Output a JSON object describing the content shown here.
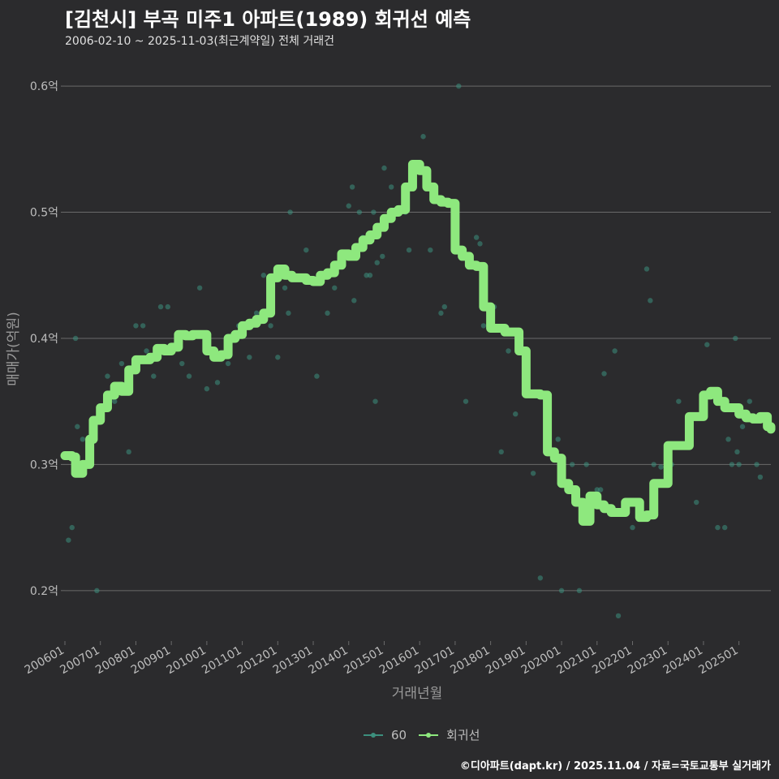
{
  "header": {
    "title": "[김천시] 부곡 미주1 아파트(1989) 회귀선 예측",
    "subtitle": "2006-02-10 ~ 2025-11-03(최근계약일) 전체 거래건"
  },
  "footer": {
    "credit": "©디아파트(dapt.kr) / 2025.11.04 / 자료=국토교통부 실거래가"
  },
  "colors": {
    "scatter": "#3c8f7d",
    "regression": "#8ee87e",
    "grid": "#6a6a6a",
    "background": "#2b2b2d"
  },
  "chart_data": {
    "type": "scatter",
    "title": "[김천시] 부곡 미주1 아파트(1989) 회귀선 예측",
    "subtitle": "2006-02-10 ~ 2025-11-03(최근계약일) 전체 거래건",
    "xlabel": "거래년월",
    "ylabel": "매매가(억원)",
    "xlim": [
      2006.0,
      2025.9
    ],
    "ylim": [
      0.16,
      0.62
    ],
    "y_ticks": [
      0.2,
      0.3,
      0.4,
      0.5,
      0.6
    ],
    "y_tick_labels": [
      "0.2억",
      "0.3억",
      "0.4억",
      "0.5억",
      "0.6억"
    ],
    "x_ticks": [
      2006,
      2007,
      2008,
      2009,
      2010,
      2011,
      2012,
      2013,
      2014,
      2015,
      2016,
      2017,
      2018,
      2019,
      2020,
      2021,
      2022,
      2023,
      2024,
      2025
    ],
    "x_tick_labels": [
      "200601",
      "200701",
      "200801",
      "200901",
      "201001",
      "201101",
      "201201",
      "201301",
      "201401",
      "201501",
      "201601",
      "201701",
      "201801",
      "201901",
      "202001",
      "202101",
      "202201",
      "202301",
      "202401",
      "202501"
    ],
    "legend": [
      {
        "name": "60",
        "key": "scatter"
      },
      {
        "name": "회귀선",
        "key": "regression"
      }
    ],
    "legend_position": "bottom",
    "series": [
      {
        "name": "60",
        "kind": "points",
        "x": [
          2006.1,
          2006.2,
          2006.3,
          2006.35,
          2006.5,
          2006.9,
          2007.2,
          2007.4,
          2007.6,
          2007.8,
          2008.0,
          2008.2,
          2008.3,
          2008.5,
          2008.7,
          2008.9,
          2009.3,
          2009.5,
          2009.8,
          2010.0,
          2010.3,
          2010.6,
          2010.8,
          2010.9,
          2011.2,
          2011.4,
          2011.6,
          2011.8,
          2012.0,
          2012.2,
          2012.3,
          2012.35,
          2012.8,
          2013.1,
          2013.4,
          2013.6,
          2013.8,
          2014.0,
          2014.1,
          2014.15,
          2014.3,
          2014.4,
          2014.5,
          2014.6,
          2014.7,
          2014.75,
          2014.8,
          2014.95,
          2015.0,
          2015.2,
          2015.6,
          2015.7,
          2016.1,
          2016.3,
          2016.6,
          2016.7,
          2017.1,
          2017.3,
          2017.6,
          2017.7,
          2017.8,
          2018.1,
          2018.3,
          2018.5,
          2018.7,
          2019.2,
          2019.4,
          2019.9,
          2020.0,
          2020.3,
          2020.5,
          2020.7,
          2021.0,
          2021.1,
          2021.2,
          2021.5,
          2021.6,
          2022.0,
          2022.4,
          2022.5,
          2022.6,
          2022.8,
          2023.1,
          2023.3,
          2023.6,
          2023.8,
          2024.1,
          2024.4,
          2024.6,
          2024.7,
          2024.8,
          2024.9,
          2024.95,
          2025.0,
          2025.1,
          2025.2,
          2025.3,
          2025.5,
          2025.6
        ],
        "y": [
          0.24,
          0.25,
          0.4,
          0.33,
          0.32,
          0.2,
          0.37,
          0.35,
          0.38,
          0.31,
          0.41,
          0.41,
          0.39,
          0.37,
          0.425,
          0.425,
          0.38,
          0.37,
          0.44,
          0.36,
          0.365,
          0.38,
          0.4,
          0.41,
          0.385,
          0.42,
          0.45,
          0.41,
          0.385,
          0.44,
          0.42,
          0.5,
          0.47,
          0.37,
          0.42,
          0.44,
          0.46,
          0.505,
          0.52,
          0.43,
          0.5,
          0.48,
          0.45,
          0.45,
          0.5,
          0.35,
          0.46,
          0.465,
          0.535,
          0.52,
          0.5,
          0.47,
          0.56,
          0.47,
          0.42,
          0.425,
          0.6,
          0.35,
          0.48,
          0.475,
          0.41,
          0.425,
          0.31,
          0.39,
          0.34,
          0.293,
          0.21,
          0.32,
          0.2,
          0.3,
          0.2,
          0.3,
          0.28,
          0.28,
          0.372,
          0.39,
          0.18,
          0.25,
          0.455,
          0.43,
          0.3,
          0.298,
          0.3,
          0.35,
          0.33,
          0.27,
          0.395,
          0.25,
          0.25,
          0.32,
          0.3,
          0.4,
          0.31,
          0.3,
          0.33,
          0.34,
          0.35,
          0.3,
          0.29
        ]
      },
      {
        "name": "회귀선",
        "kind": "line",
        "x": [
          2006.0,
          2006.1,
          2006.2,
          2006.3,
          2006.5,
          2006.6,
          2006.7,
          2006.8,
          2007.0,
          2007.2,
          2007.4,
          2007.6,
          2007.8,
          2008.0,
          2008.2,
          2008.4,
          2008.6,
          2008.8,
          2009.0,
          2009.2,
          2009.4,
          2009.6,
          2009.8,
          2010.0,
          2010.2,
          2010.4,
          2010.6,
          2010.8,
          2011.0,
          2011.2,
          2011.4,
          2011.6,
          2011.8,
          2012.0,
          2012.2,
          2012.4,
          2012.6,
          2012.8,
          2013.0,
          2013.2,
          2013.4,
          2013.6,
          2013.8,
          2014.0,
          2014.2,
          2014.4,
          2014.6,
          2014.8,
          2015.0,
          2015.2,
          2015.4,
          2015.6,
          2015.8,
          2016.0,
          2016.2,
          2016.4,
          2016.6,
          2016.8,
          2017.0,
          2017.2,
          2017.4,
          2017.6,
          2017.8,
          2018.0,
          2018.2,
          2018.4,
          2018.6,
          2018.8,
          2019.0,
          2019.2,
          2019.4,
          2019.6,
          2019.8,
          2020.0,
          2020.1,
          2020.2,
          2020.4,
          2020.6,
          2020.8,
          2021.0,
          2021.2,
          2021.4,
          2021.6,
          2021.8,
          2022.0,
          2022.2,
          2022.4,
          2022.6,
          2022.8,
          2023.0,
          2023.2,
          2023.4,
          2023.6,
          2023.8,
          2024.0,
          2024.2,
          2024.4,
          2024.6,
          2024.8,
          2025.0,
          2025.2,
          2025.4,
          2025.6,
          2025.8,
          2025.9
        ],
        "y": [
          0.307,
          0.307,
          0.306,
          0.293,
          0.3,
          0.3,
          0.32,
          0.335,
          0.345,
          0.355,
          0.362,
          0.358,
          0.375,
          0.383,
          0.383,
          0.385,
          0.392,
          0.39,
          0.393,
          0.403,
          0.402,
          0.403,
          0.403,
          0.39,
          0.385,
          0.387,
          0.4,
          0.403,
          0.41,
          0.412,
          0.415,
          0.42,
          0.448,
          0.455,
          0.45,
          0.448,
          0.448,
          0.446,
          0.445,
          0.45,
          0.452,
          0.458,
          0.467,
          0.465,
          0.472,
          0.478,
          0.482,
          0.488,
          0.495,
          0.5,
          0.502,
          0.52,
          0.538,
          0.533,
          0.52,
          0.51,
          0.508,
          0.507,
          0.47,
          0.465,
          0.458,
          0.457,
          0.425,
          0.408,
          0.408,
          0.405,
          0.405,
          0.39,
          0.356,
          0.356,
          0.355,
          0.31,
          0.305,
          0.285,
          0.285,
          0.28,
          0.27,
          0.255,
          0.275,
          0.268,
          0.265,
          0.262,
          0.262,
          0.27,
          0.27,
          0.258,
          0.26,
          0.285,
          0.285,
          0.315,
          0.315,
          0.315,
          0.338,
          0.338,
          0.355,
          0.358,
          0.35,
          0.345,
          0.345,
          0.34,
          0.337,
          0.336,
          0.338,
          0.33,
          0.328
        ]
      }
    ]
  }
}
